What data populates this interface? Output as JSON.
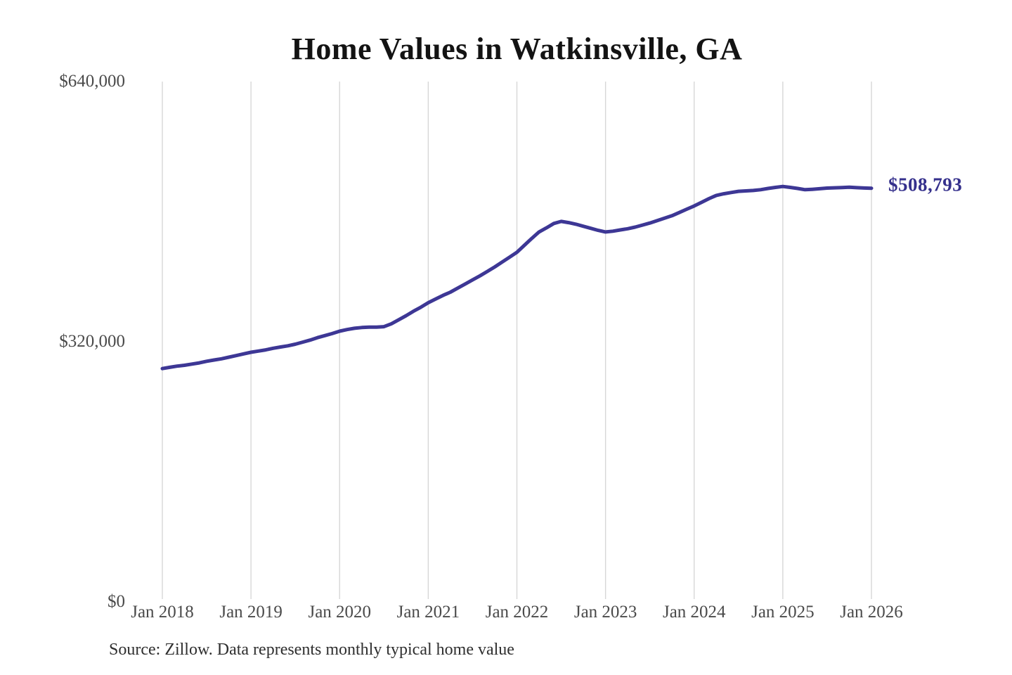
{
  "page": {
    "source_note": "Source: Zillow. Data represents monthly typical home value"
  },
  "chart_data": {
    "type": "line",
    "title": "Home Values in Watkinsville, GA",
    "xlabel": "",
    "ylabel": "",
    "x_ticks": [
      "Jan 2018",
      "Jan 2019",
      "Jan 2020",
      "Jan 2021",
      "Jan 2022",
      "Jan 2023",
      "Jan 2024",
      "Jan 2025",
      "Jan 2026"
    ],
    "y_ticks": [
      {
        "label": "$0",
        "value": 0
      },
      {
        "label": "$320,000",
        "value": 320000
      },
      {
        "label": "$640,000",
        "value": 640000
      }
    ],
    "ylim": [
      0,
      640000
    ],
    "grid": "vertical-gridlines-only",
    "legend": "none",
    "line_color": "#3d3795",
    "gridline_color": "#d7d7d7",
    "end_label": "$508,793",
    "final_value": 508793,
    "series": [
      {
        "name": "Monthly typical home value",
        "x_start": "Jan 2018",
        "x_end": "Jan 2026",
        "interval_months": 1,
        "values": [
          287000,
          288500,
          290000,
          291000,
          292500,
          294000,
          296000,
          297500,
          299000,
          301000,
          303000,
          305000,
          307000,
          308500,
          310000,
          312000,
          313500,
          315000,
          317000,
          319500,
          322000,
          325000,
          327500,
          330000,
          333000,
          335000,
          336500,
          337500,
          338000,
          338000,
          338500,
          342000,
          347000,
          352000,
          357500,
          362500,
          368000,
          372500,
          377000,
          381000,
          386000,
          391000,
          396000,
          401000,
          406500,
          412000,
          418000,
          424000,
          430000,
          438500,
          447000,
          455000,
          460000,
          465500,
          468000,
          466500,
          464500,
          462000,
          459500,
          457000,
          455000,
          456000,
          457500,
          459000,
          461000,
          463500,
          466000,
          469000,
          472000,
          475000,
          479000,
          483000,
          487000,
          491500,
          496000,
          500000,
          502000,
          503500,
          505000,
          505500,
          506000,
          507000,
          508500,
          509800,
          511000,
          509800,
          508500,
          507000,
          507500,
          508200,
          509000,
          509300,
          509700,
          510000,
          509500,
          509100,
          508793
        ]
      }
    ]
  }
}
